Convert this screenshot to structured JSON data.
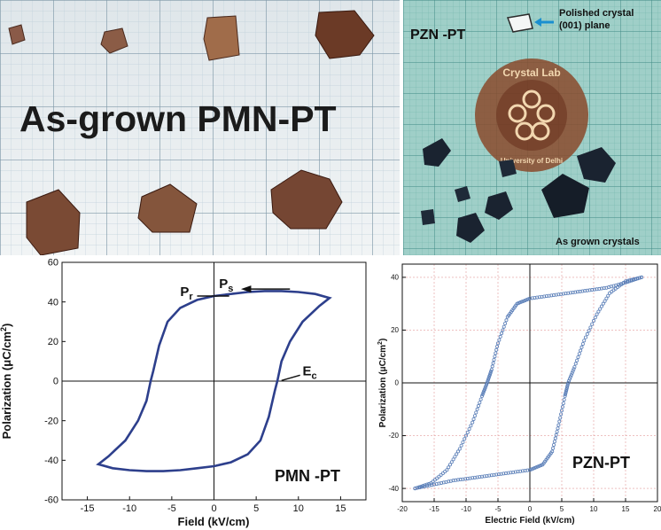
{
  "photos": {
    "left": {
      "caption": "As-grown PMN-PT",
      "colors": {
        "paper": "#e9eef0",
        "grid_major": "#7f98a8",
        "grid_minor": "#bfd0da",
        "crystal": "#7a4a34"
      }
    },
    "right": {
      "title": "PZN -PT",
      "polished_label_line1": "Polished crystal",
      "polished_label_line2": "(001) plane",
      "logo_text_top": "Crystal Lab",
      "logo_text_bottom": "University of Delhi",
      "grown_label": "As grown crystals",
      "colors": {
        "paper": "#9fcfc8",
        "grid": "#3f8a85",
        "crystal": "#1a2330",
        "logo": "#8a4a2c",
        "arrow": "#1a8fd0"
      }
    }
  },
  "chart_data": [
    {
      "type": "line",
      "xlabel": "Field (kV/cm)",
      "ylabel_main": "Polarization (",
      "ylabel_unit": "μC/cm",
      "ylabel_sup": "2",
      "ylabel_end": ")",
      "xlim": [
        -18,
        18
      ],
      "ylim": [
        -60,
        60
      ],
      "xticks": [
        -15,
        -10,
        -5,
        0,
        5,
        10,
        15
      ],
      "yticks": [
        -60,
        -40,
        -20,
        0,
        20,
        40,
        60
      ],
      "grid": false,
      "color": "#2d3f8c",
      "label": "PMN -PT",
      "series": [
        {
          "upper_branch": [
            [
              13.7,
              42
            ],
            [
              12,
              44
            ],
            [
              10,
              45
            ],
            [
              8,
              45.5
            ],
            [
              6,
              45.5
            ],
            [
              4,
              45
            ],
            [
              2,
              44
            ],
            [
              0,
              43
            ],
            [
              -2,
              41
            ],
            [
              -4,
              37
            ],
            [
              -5.5,
              30
            ],
            [
              -6.5,
              18
            ],
            [
              -7.2,
              5
            ],
            [
              -7.5,
              0
            ],
            [
              -8,
              -10
            ],
            [
              -9,
              -20
            ],
            [
              -10.5,
              -30
            ],
            [
              -12.5,
              -38
            ],
            [
              -13.7,
              -42
            ]
          ],
          "lower_branch": [
            [
              -13.7,
              -42
            ],
            [
              -12,
              -44
            ],
            [
              -10,
              -45
            ],
            [
              -8,
              -45.5
            ],
            [
              -6,
              -45.5
            ],
            [
              -4,
              -45
            ],
            [
              -2,
              -44
            ],
            [
              0,
              -43
            ],
            [
              2,
              -41
            ],
            [
              4,
              -37
            ],
            [
              5.5,
              -30
            ],
            [
              6.5,
              -18
            ],
            [
              7.2,
              -5
            ],
            [
              7.5,
              0
            ],
            [
              8,
              10
            ],
            [
              9,
              20
            ],
            [
              10.5,
              30
            ],
            [
              12.5,
              38
            ],
            [
              13.7,
              42
            ]
          ]
        }
      ],
      "annotations": [
        {
          "text": "P",
          "sub": "s",
          "x": 0.6,
          "y": 47
        },
        {
          "text": "P",
          "sub": "r",
          "x": -4,
          "y": 43
        },
        {
          "text": "E",
          "sub": "c",
          "x": 10.5,
          "y": 3
        }
      ]
    },
    {
      "type": "scatter",
      "xlabel": "Electric Field (kV/cm)",
      "ylabel_main": "Polarization (",
      "ylabel_unit": "μC/cm",
      "ylabel_sup": "2",
      "ylabel_end": ")",
      "xlim": [
        -20,
        20
      ],
      "ylim": [
        -45,
        45
      ],
      "xticks": [
        -20,
        -15,
        -10,
        -5,
        0,
        5,
        10,
        15,
        20
      ],
      "yticks": [
        -40,
        -20,
        0,
        20,
        40
      ],
      "grid": true,
      "color": "#5b7fb8",
      "label": "PZN-PT",
      "series": [
        {
          "upper_branch": [
            [
              17.5,
              40
            ],
            [
              15,
              38
            ],
            [
              12,
              36
            ],
            [
              9,
              35
            ],
            [
              6,
              34
            ],
            [
              3,
              33
            ],
            [
              0,
              32
            ],
            [
              -2,
              30
            ],
            [
              -3.5,
              25
            ],
            [
              -5,
              15
            ],
            [
              -6,
              5
            ],
            [
              -6.7,
              0
            ],
            [
              -7.5,
              -5
            ],
            [
              -9,
              -15
            ],
            [
              -11,
              -25
            ],
            [
              -13,
              -33
            ],
            [
              -15.5,
              -38
            ],
            [
              -18,
              -40
            ]
          ],
          "lower_branch": [
            [
              -18,
              -40
            ],
            [
              -15,
              -38.5
            ],
            [
              -12,
              -37
            ],
            [
              -9,
              -36
            ],
            [
              -6,
              -35
            ],
            [
              -3,
              -34
            ],
            [
              0,
              -33
            ],
            [
              2,
              -31
            ],
            [
              3.5,
              -26
            ],
            [
              4.5,
              -16
            ],
            [
              5.5,
              -5
            ],
            [
              6,
              0
            ],
            [
              7,
              6
            ],
            [
              8.5,
              16
            ],
            [
              10.5,
              26
            ],
            [
              12.5,
              34
            ],
            [
              15,
              38.5
            ],
            [
              17.5,
              40
            ]
          ]
        }
      ]
    }
  ]
}
